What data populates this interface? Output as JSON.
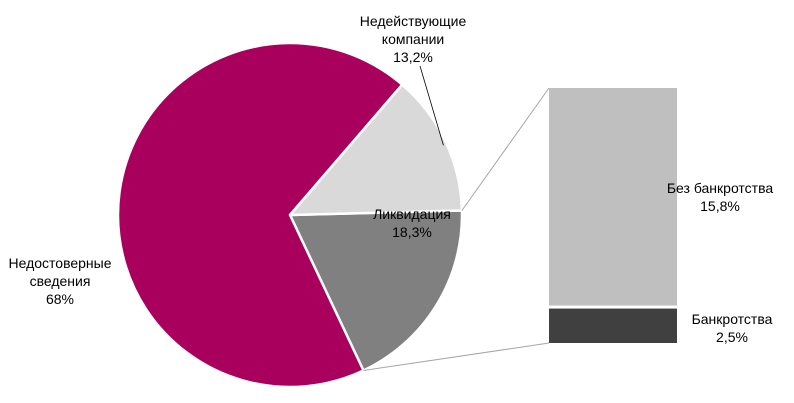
{
  "chart_data": {
    "type": "pie",
    "title": "",
    "slices": [
      {
        "label_lines": [
          "Недостоверные",
          "сведения"
        ],
        "value_label": "68%",
        "value": 68.0,
        "color": "#A8005C"
      },
      {
        "label_lines": [
          "Недействующие",
          "компании"
        ],
        "value_label": "13,2%",
        "value": 13.2,
        "color": "#D9D9D9"
      },
      {
        "label_lines": [
          "Ликвидация"
        ],
        "value_label": "18,3%",
        "value": 18.3,
        "color": "#808080"
      }
    ],
    "breakdown": {
      "of_slice": "Ликвидация",
      "type": "stacked-bar",
      "segments": [
        {
          "label_lines": [
            "Без банкротства"
          ],
          "value_label": "15,8%",
          "value": 15.8,
          "color": "#BFBFBF"
        },
        {
          "label_lines": [
            "Банкротства"
          ],
          "value_label": "2,5%",
          "value": 2.5,
          "color": "#404040"
        }
      ]
    },
    "legend": "none",
    "grid": false
  }
}
